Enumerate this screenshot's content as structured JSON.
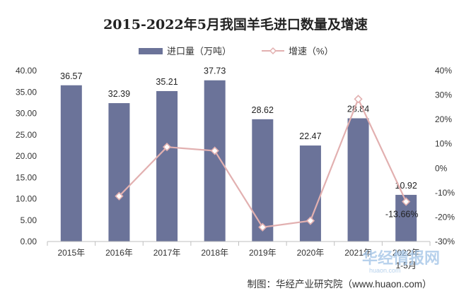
{
  "chart_data": {
    "type": "bar",
    "title": "2015-2022年5月我国羊毛进口数量及增速",
    "categories": [
      "2015年",
      "2016年",
      "2017年",
      "2018年",
      "2019年",
      "2020年",
      "2021年",
      "2022年"
    ],
    "category_sublabels": [
      "",
      "",
      "",
      "",
      "",
      "",
      "",
      "1-5月"
    ],
    "series": [
      {
        "name": "进口量（万吨）",
        "kind": "bar",
        "axis": "left",
        "color": "#6b7399",
        "values": [
          36.57,
          32.39,
          35.21,
          37.73,
          28.62,
          22.47,
          28.84,
          10.92
        ],
        "labels": [
          "36.57",
          "32.39",
          "35.21",
          "37.73",
          "28.62",
          "22.47",
          "28.84",
          "10.92"
        ]
      },
      {
        "name": "增速（%）",
        "kind": "line",
        "axis": "right",
        "color": "#e2b0b0",
        "values": [
          null,
          -11.43,
          8.71,
          7.16,
          -24.15,
          -21.49,
          28.35,
          -13.66
        ],
        "labels": [
          "",
          "",
          "",
          "",
          "",
          "",
          "",
          "-13.66%"
        ]
      }
    ],
    "y_left": {
      "min": 0,
      "max": 40,
      "step": 5,
      "tick_labels": [
        "0.00",
        "5.00",
        "10.00",
        "15.00",
        "20.00",
        "25.00",
        "30.00",
        "35.00",
        "40.00"
      ]
    },
    "y_right": {
      "min": -30,
      "max": 40,
      "step": 10,
      "tick_labels": [
        "-30%",
        "-20%",
        "-10%",
        "0%",
        "10%",
        "20%",
        "30%",
        "40%"
      ]
    },
    "grid": false,
    "legend": "top-center"
  },
  "footer": {
    "source": "制图：华经产业研究院（www.huaon.com）"
  },
  "watermark": {
    "text": "华经情报网",
    "sub": "huaon.com"
  }
}
